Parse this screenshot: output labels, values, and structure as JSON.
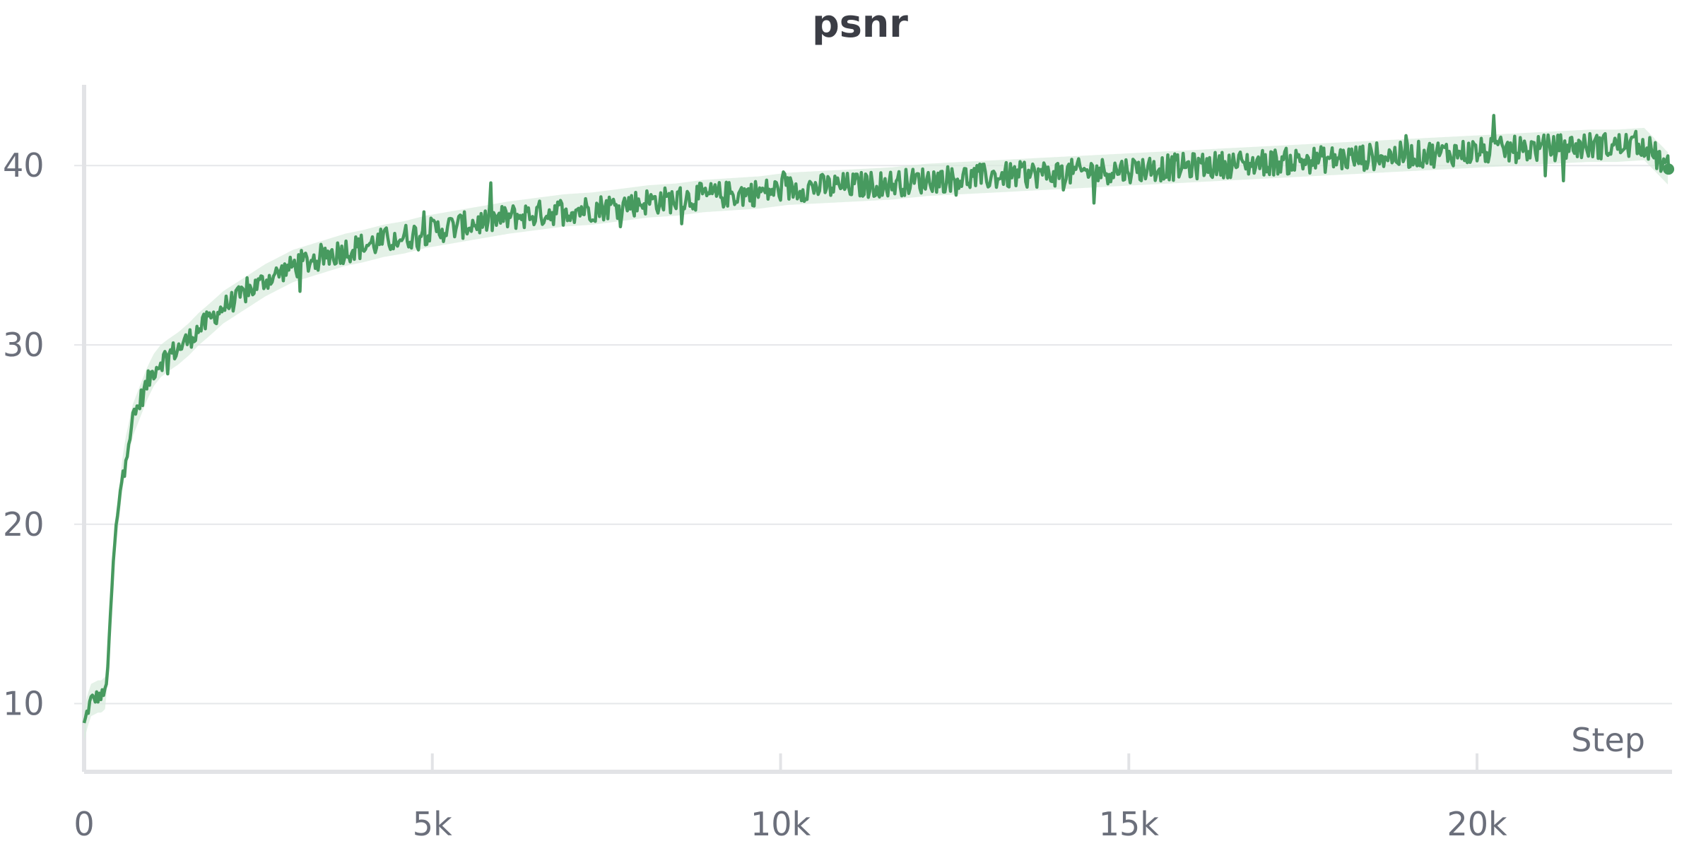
{
  "chart_data": {
    "type": "line",
    "title": "psnr",
    "xlabel": "Step",
    "ylabel": "",
    "xlim": [
      0,
      22800
    ],
    "ylim": [
      6.2,
      44.5
    ],
    "x_ticks": [
      {
        "value": 0,
        "label": "0"
      },
      {
        "value": 5000,
        "label": "5k"
      },
      {
        "value": 10000,
        "label": "10k"
      },
      {
        "value": 15000,
        "label": "15k"
      },
      {
        "value": 20000,
        "label": "20k"
      }
    ],
    "y_ticks": [
      {
        "value": 10,
        "label": "10"
      },
      {
        "value": 20,
        "label": "20"
      },
      {
        "value": 30,
        "label": "30"
      },
      {
        "value": 40,
        "label": "40"
      }
    ],
    "grid": "horizontal",
    "series": [
      {
        "color": "#479a5f",
        "band_color": "#d8ebdd",
        "x": [
          0,
          50,
          100,
          150,
          200,
          250,
          300,
          350,
          400,
          450,
          500,
          550,
          600,
          700,
          800,
          900,
          1000,
          1100,
          1200,
          1350,
          1500,
          1650,
          1800,
          2000,
          2200,
          2400,
          2600,
          2800,
          3000,
          3250,
          3500,
          3750,
          4000,
          4300,
          4600,
          4900,
          5200,
          5500,
          5800,
          6100,
          6500,
          6900,
          7300,
          7700,
          8100,
          8500,
          8900,
          9300,
          9700,
          10100,
          10600,
          11100,
          11600,
          12100,
          12600,
          13100,
          13600,
          14100,
          14600,
          15100,
          15600,
          16100,
          16600,
          17100,
          17600,
          18100,
          18600,
          19100,
          19600,
          20100,
          20600,
          21100,
          21600,
          22000,
          22400,
          22750
        ],
        "values": [
          8.8,
          9.6,
          10.2,
          10.3,
          10.4,
          10.4,
          10.6,
          12.5,
          16.5,
          19.5,
          21.0,
          22.8,
          24.0,
          25.8,
          26.8,
          27.8,
          28.6,
          29.1,
          29.4,
          29.8,
          30.3,
          30.9,
          31.4,
          32.1,
          32.6,
          33.1,
          33.6,
          34.0,
          34.4,
          34.7,
          35.0,
          35.3,
          35.5,
          35.8,
          36.0,
          36.3,
          36.5,
          36.7,
          36.9,
          37.1,
          37.3,
          37.5,
          37.6,
          37.8,
          38.0,
          38.1,
          38.3,
          38.4,
          38.5,
          38.7,
          38.8,
          38.9,
          39.0,
          39.2,
          39.3,
          39.4,
          39.5,
          39.6,
          39.7,
          39.8,
          39.9,
          40.0,
          40.1,
          40.2,
          40.3,
          40.4,
          40.5,
          40.6,
          40.7,
          40.8,
          40.9,
          41.0,
          41.1,
          41.1,
          41.2,
          39.8
        ]
      }
    ]
  }
}
